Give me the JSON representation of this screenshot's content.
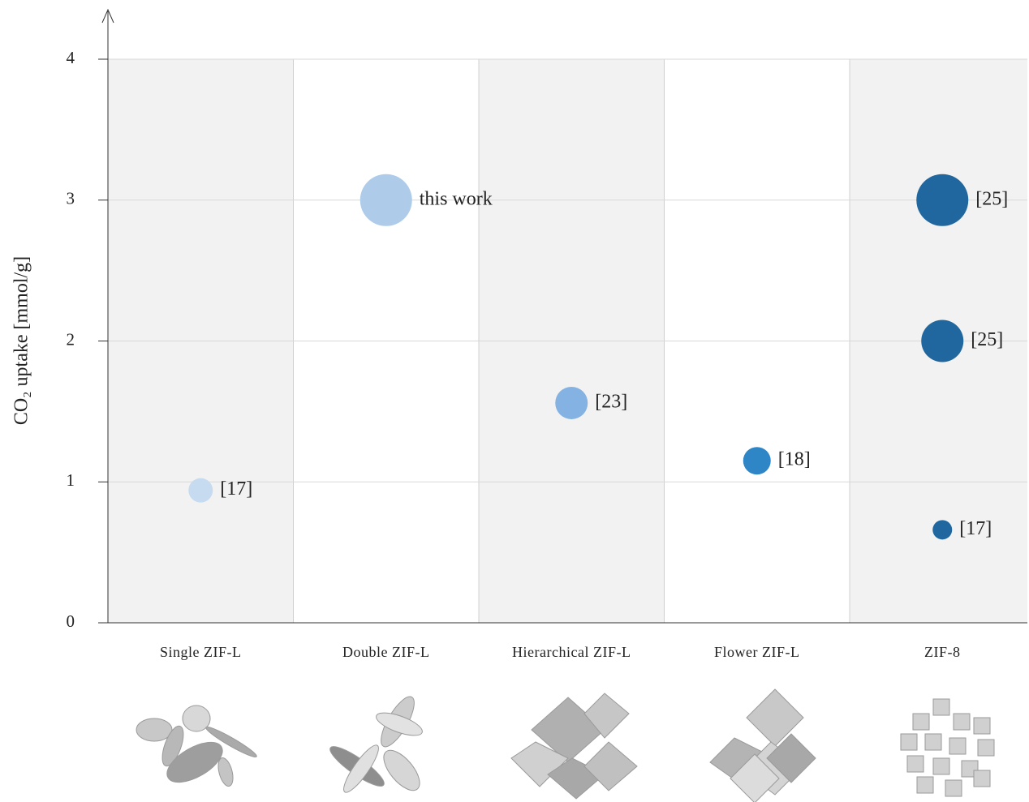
{
  "chart_data": {
    "type": "bubble",
    "y_label": "CO₂ uptake [mmol/g]",
    "ylim": [
      0,
      4
    ],
    "yticks": [
      0,
      1,
      2,
      3,
      4
    ],
    "grid": true,
    "groups": [
      {
        "category": "Single ZIF-L",
        "color": "#c6dbef",
        "points": [
          {
            "value": 0.94,
            "size": 15,
            "label": "[17]"
          }
        ]
      },
      {
        "category": "Double ZIF-L",
        "color": "#aecbea",
        "points": [
          {
            "value": 3.0,
            "size": 32,
            "label": "this work"
          }
        ]
      },
      {
        "category": "Hierarchical ZIF-L",
        "color": "#84b2e2",
        "points": [
          {
            "value": 1.56,
            "size": 20,
            "label": "[23]"
          }
        ]
      },
      {
        "category": "Flower ZIF-L",
        "color": "#2f86c6",
        "points": [
          {
            "value": 1.15,
            "size": 17,
            "label": "[18]"
          }
        ]
      },
      {
        "category": "ZIF-8",
        "color": "#1f679e",
        "points": [
          {
            "value": 3.0,
            "size": 32,
            "label": "[25]"
          },
          {
            "value": 2.0,
            "size": 26,
            "label": "[25]"
          },
          {
            "value": 0.66,
            "size": 12,
            "label": "[17]"
          }
        ]
      }
    ]
  }
}
